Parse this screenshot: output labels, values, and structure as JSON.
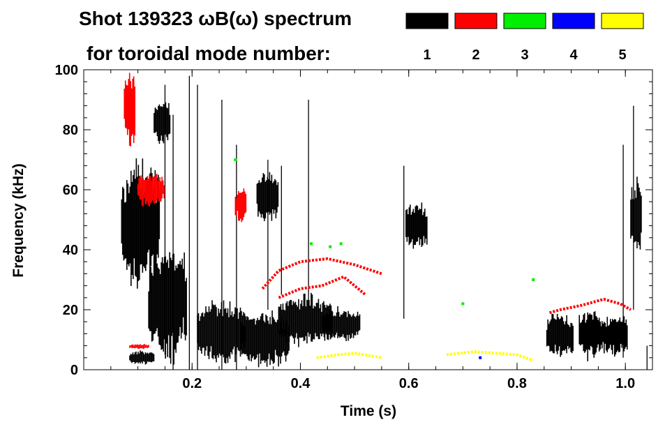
{
  "chart_data": {
    "type": "spectrogram",
    "title_line1": "Shot 139323 ωB(ω) spectrum",
    "title_line2": "for toroidal mode number:",
    "xlabel": "Time (s)",
    "ylabel": "Frequency (kHz)",
    "xlim": [
      0.0,
      1.05
    ],
    "ylim": [
      0,
      100
    ],
    "xticks": [
      0.2,
      0.4,
      0.6,
      0.8,
      1.0
    ],
    "xtick_labels": [
      "0.2",
      "0.4",
      "0.6",
      "0.8",
      "1.0"
    ],
    "yticks": [
      0,
      20,
      40,
      60,
      80,
      100
    ],
    "ytick_labels": [
      "0",
      "20",
      "40",
      "60",
      "80",
      "100"
    ],
    "legend": [
      {
        "n": "1",
        "color": "#000000"
      },
      {
        "n": "2",
        "color": "#ff0000"
      },
      {
        "n": "3",
        "color": "#00ee00"
      },
      {
        "n": "4",
        "color": "#0000ff"
      },
      {
        "n": "5",
        "color": "#ffff00"
      }
    ],
    "series": [
      {
        "name": "n=1",
        "color": "#000000",
        "blobs": [
          {
            "t": [
              0.07,
              0.14
            ],
            "f": [
              30,
              68
            ]
          },
          {
            "t": [
              0.12,
              0.19
            ],
            "f": [
              5,
              40
            ]
          },
          {
            "t": [
              0.13,
              0.16
            ],
            "f": [
              75,
              90
            ]
          },
          {
            "t": [
              0.085,
              0.13
            ],
            "f": [
              2,
              6
            ]
          },
          {
            "t": [
              0.21,
              0.3
            ],
            "f": [
              3,
              22
            ]
          },
          {
            "t": [
              0.29,
              0.38
            ],
            "f": [
              2,
              18
            ]
          },
          {
            "t": [
              0.36,
              0.46
            ],
            "f": [
              9,
              24
            ]
          },
          {
            "t": [
              0.44,
              0.51
            ],
            "f": [
              10,
              20
            ]
          },
          {
            "t": [
              0.32,
              0.36
            ],
            "f": [
              50,
              65
            ]
          },
          {
            "t": [
              0.595,
              0.635
            ],
            "f": [
              40,
              55
            ]
          },
          {
            "t": [
              0.855,
              0.905
            ],
            "f": [
              5,
              18
            ]
          },
          {
            "t": [
              0.915,
              0.955
            ],
            "f": [
              4,
              20
            ]
          },
          {
            "t": [
              0.955,
              1.005
            ],
            "f": [
              5,
              18
            ]
          },
          {
            "t": [
              1.01,
              1.03
            ],
            "f": [
              40,
              62
            ]
          }
        ],
        "streaks": [
          {
            "t": 0.195,
            "f": [
              0,
              98
            ]
          },
          {
            "t": 0.21,
            "f": [
              0,
              95
            ]
          },
          {
            "t": 0.15,
            "f": [
              5,
              95
            ]
          },
          {
            "t": 0.165,
            "f": [
              0,
              85
            ]
          },
          {
            "t": 0.255,
            "f": [
              0,
              90
            ]
          },
          {
            "t": 0.282,
            "f": [
              0,
              75
            ]
          },
          {
            "t": 0.34,
            "f": [
              20,
              70
            ]
          },
          {
            "t": 0.365,
            "f": [
              25,
              68
            ]
          },
          {
            "t": 0.415,
            "f": [
              20,
              90
            ]
          },
          {
            "t": 0.591,
            "f": [
              17,
              68
            ]
          },
          {
            "t": 0.996,
            "f": [
              4,
              75
            ]
          },
          {
            "t": 1.015,
            "f": [
              20,
              88
            ]
          },
          {
            "t": 1.04,
            "f": [
              0,
              8
            ]
          }
        ]
      },
      {
        "name": "n=2",
        "color": "#ff0000",
        "blobs": [
          {
            "t": [
              0.075,
              0.095
            ],
            "f": [
              75,
              100
            ]
          },
          {
            "t": [
              0.1,
              0.15
            ],
            "f": [
              55,
              65
            ]
          },
          {
            "t": [
              0.28,
              0.3
            ],
            "f": [
              50,
              60
            ]
          },
          {
            "t": [
              0.085,
              0.12
            ],
            "f": [
              7,
              8.5
            ]
          }
        ],
        "curves": [
          {
            "t": [
              0.33,
              0.36,
              0.4,
              0.45,
              0.5,
              0.55
            ],
            "f": [
              27,
              33,
              36,
              37,
              35,
              32
            ]
          },
          {
            "t": [
              0.36,
              0.4,
              0.44,
              0.48,
              0.52
            ],
            "f": [
              24,
              27,
              28,
              31,
              25
            ]
          },
          {
            "t": [
              0.86,
              0.88,
              0.92,
              0.96,
              0.99,
              1.01
            ],
            "f": [
              19,
              20,
              21.5,
              23.5,
              22,
              20
            ]
          }
        ]
      },
      {
        "name": "n=3",
        "color": "#00ee00",
        "points": [
          {
            "t": 0.455,
            "f": 41
          },
          {
            "t": 0.475,
            "f": 42
          },
          {
            "t": 0.42,
            "f": 42
          },
          {
            "t": 0.28,
            "f": 70
          },
          {
            "t": 0.7,
            "f": 22
          },
          {
            "t": 0.83,
            "f": 30
          }
        ]
      },
      {
        "name": "n=4",
        "color": "#0000ff",
        "points": [
          {
            "t": 0.732,
            "f": 4
          }
        ]
      },
      {
        "name": "n=5",
        "color": "#ffff00",
        "curves": [
          {
            "t": [
              0.43,
              0.47,
              0.5,
              0.55
            ],
            "f": [
              4,
              5,
              5.5,
              4
            ]
          },
          {
            "t": [
              0.67,
              0.72,
              0.76,
              0.8,
              0.83
            ],
            "f": [
              5,
              6,
              5.5,
              5,
              3
            ]
          }
        ]
      }
    ]
  }
}
